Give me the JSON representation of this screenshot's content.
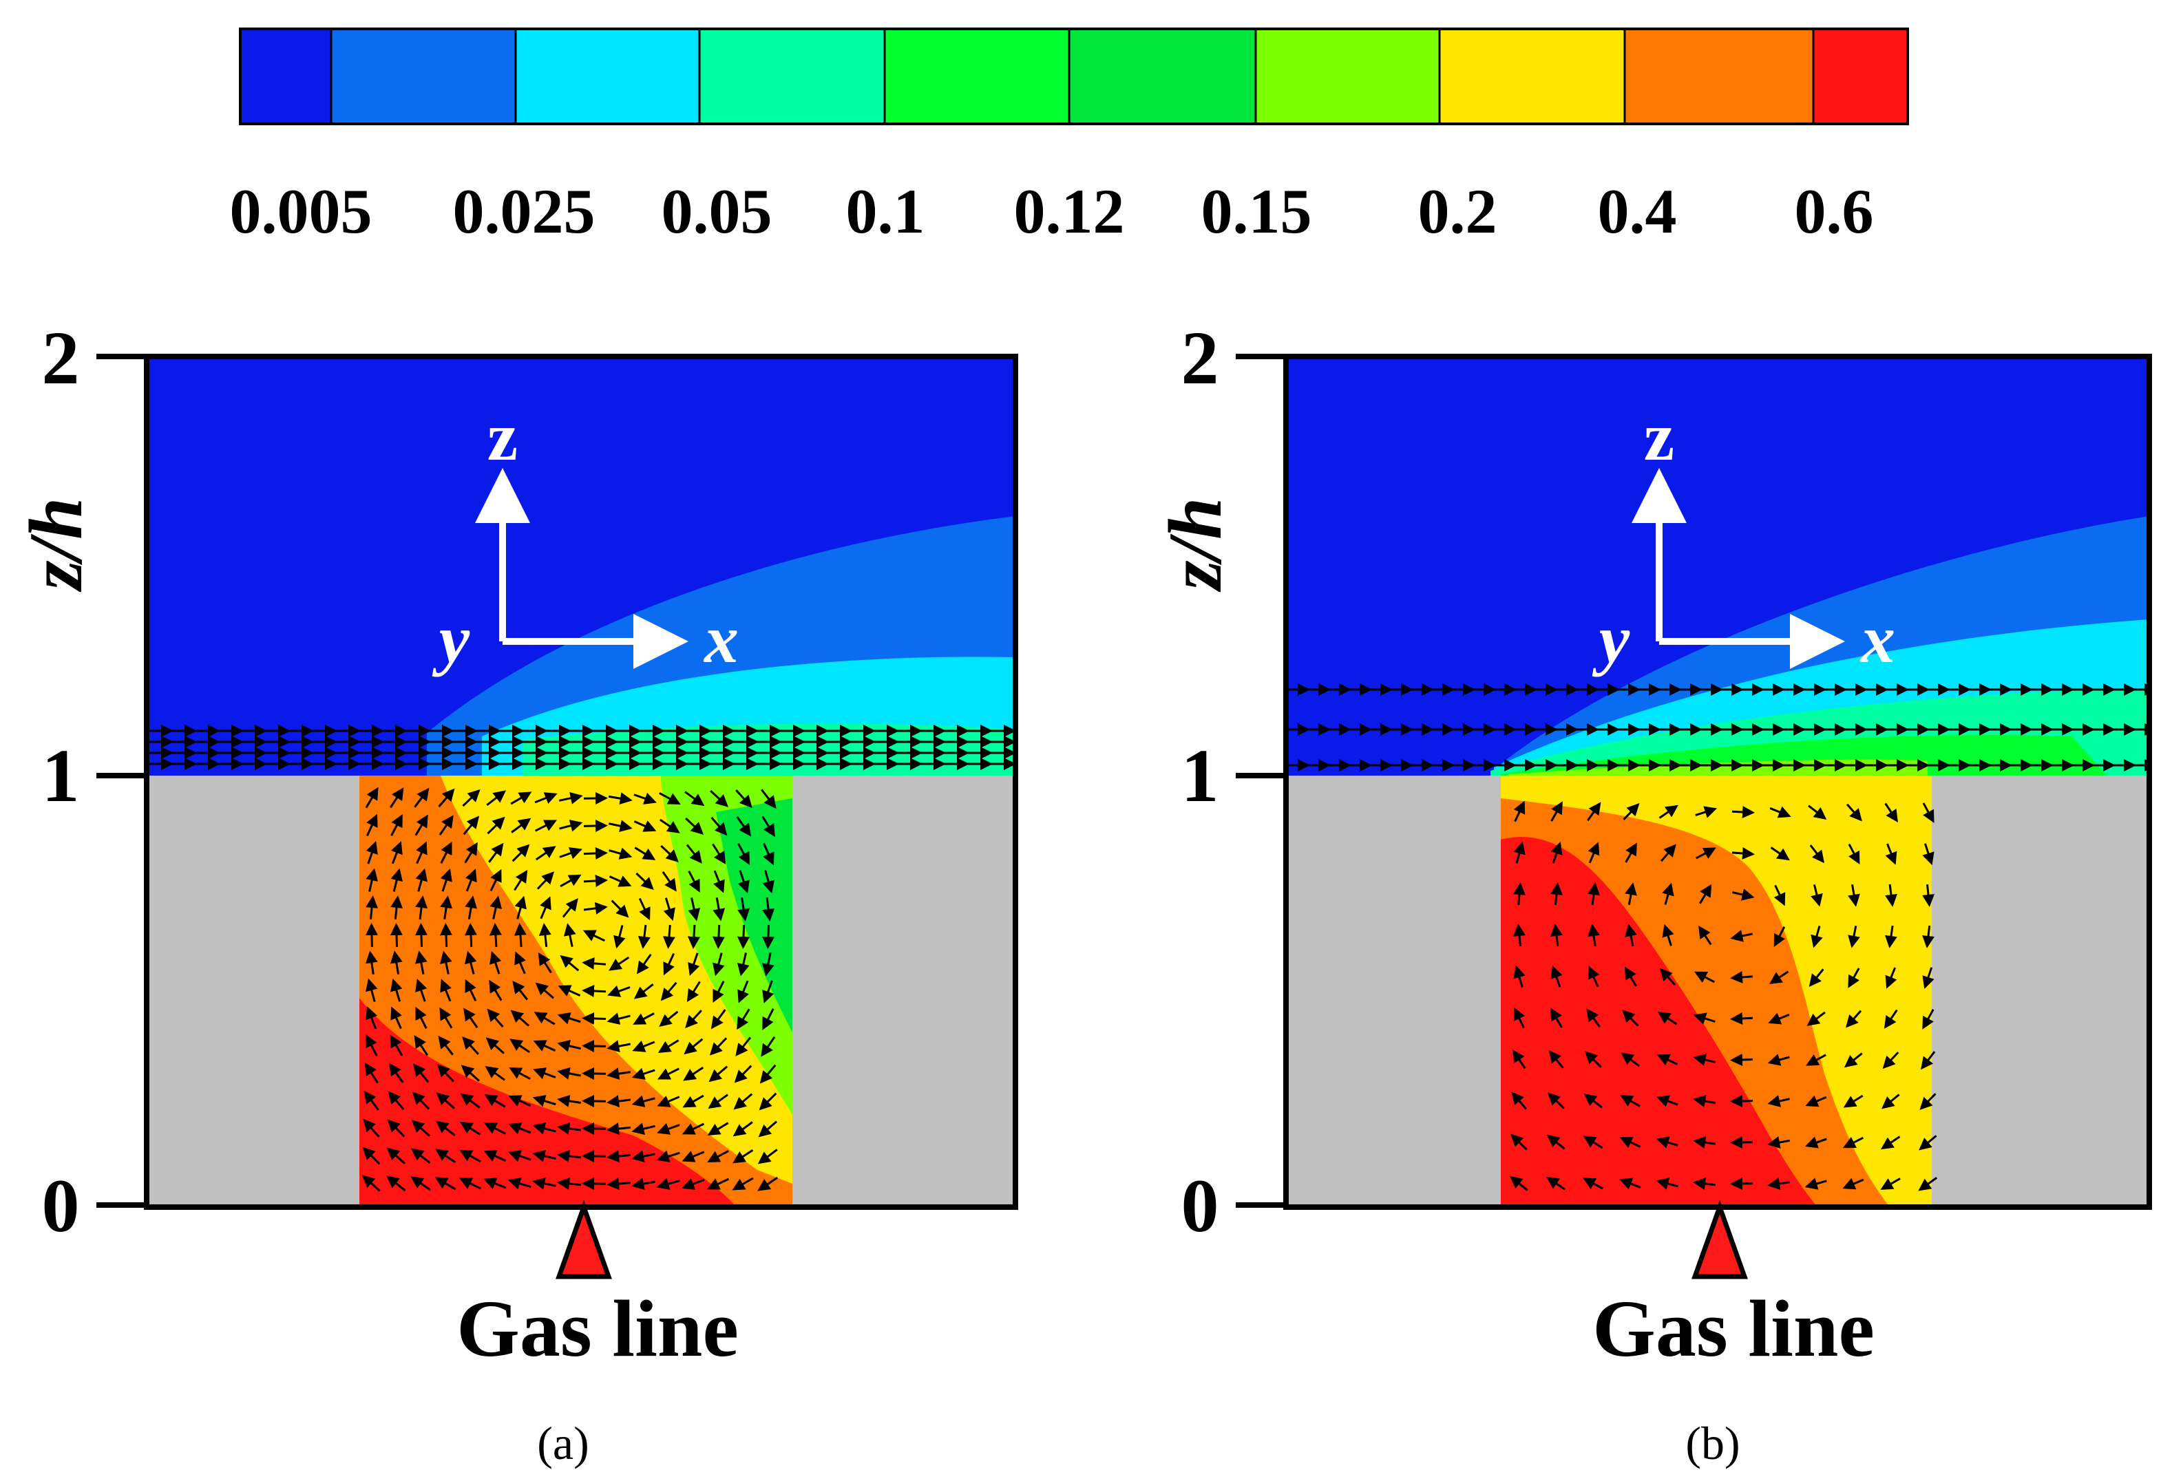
{
  "colorbar": {
    "ticks": [
      "0.005",
      "0.025",
      "0.05",
      "0.1",
      "0.12",
      "0.15",
      "0.2",
      "0.4",
      "0.6"
    ],
    "colors": [
      "#0a1ae8",
      "#0a6cf0",
      "#00e5ff",
      "#00ffa0",
      "#00ff2c",
      "#00e63a",
      "#7cff00",
      "#ffe600",
      "#ff7800",
      "#ff1414"
    ]
  },
  "panels": [
    {
      "id": "a",
      "caption": "(a)",
      "y_axis_label": "z/h",
      "y_ticks": [
        "0",
        "1",
        "2"
      ],
      "axes": {
        "z": "z",
        "x": "x",
        "y": "y"
      },
      "source_label": "Gas line"
    },
    {
      "id": "b",
      "caption": "(b)",
      "y_axis_label": "z/h",
      "y_ticks": [
        "0",
        "1",
        "2"
      ],
      "axes": {
        "z": "z",
        "x": "x",
        "y": "y"
      },
      "source_label": "Gas line"
    }
  ],
  "style": {
    "building": "#c0c0c0",
    "background_flow": "#0a1ae8",
    "vector": "#000000",
    "gas_marker": "#ff1a1a"
  }
}
